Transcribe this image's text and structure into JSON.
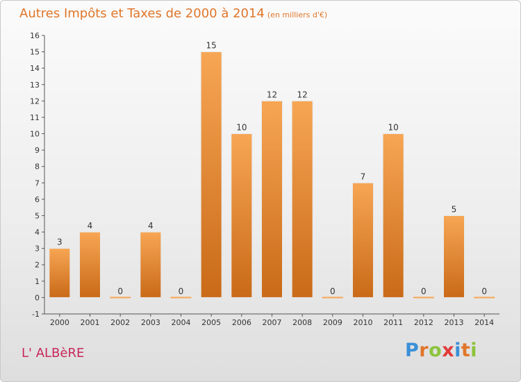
{
  "header": {
    "title": "Autres Impôts et Taxes de 2000 à 2014",
    "unit": "(en milliers d'€)"
  },
  "footer": {
    "place": "L' ALBèRE",
    "logo_letters": [
      "P",
      "r",
      "o",
      "x",
      "i",
      "t",
      "i"
    ],
    "logo_colors": [
      "#3a8fd8",
      "#e0762a",
      "#8cc43c",
      "#e23a3a",
      "#3a8fd8",
      "#e0762a",
      "#8cc43c"
    ]
  },
  "colors": {
    "bar_top": "#f7a654",
    "bar_bottom": "#c96a18",
    "axis": "#555555",
    "title": "#e0762a"
  },
  "chart_data": {
    "type": "bar",
    "title": "Autres Impôts et Taxes de 2000 à 2014",
    "subtitle": "(en milliers d'€)",
    "categories": [
      "2000",
      "2001",
      "2002",
      "2003",
      "2004",
      "2005",
      "2006",
      "2007",
      "2008",
      "2009",
      "2010",
      "2011",
      "2012",
      "2013",
      "2014"
    ],
    "values": [
      3,
      4,
      0,
      4,
      0,
      15,
      10,
      12,
      12,
      0,
      7,
      10,
      0,
      5,
      0
    ],
    "ylim": [
      -1,
      16
    ],
    "yticks": [
      -1,
      0,
      1,
      2,
      3,
      4,
      5,
      6,
      7,
      8,
      9,
      10,
      11,
      12,
      13,
      14,
      15,
      16
    ],
    "xlabel": "",
    "ylabel": "",
    "grid": false,
    "data_labels": true
  }
}
